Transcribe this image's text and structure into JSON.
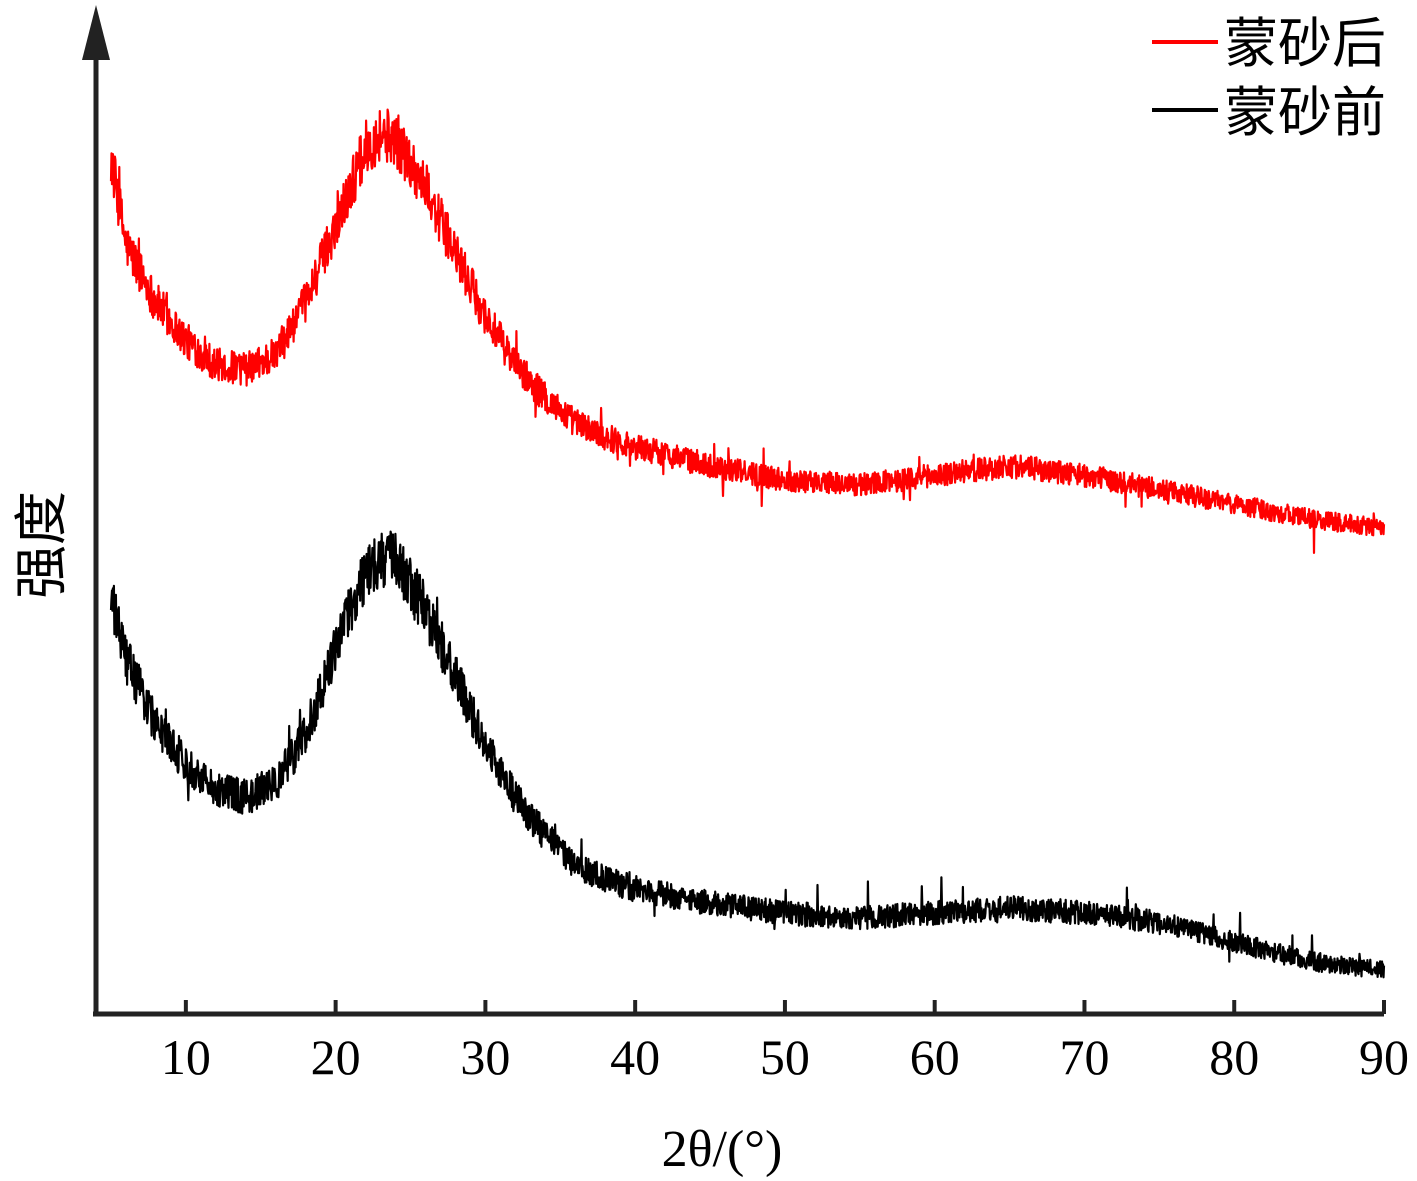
{
  "chart_data": {
    "type": "line",
    "title": "",
    "xlabel": "2θ/(°)",
    "ylabel": "强度",
    "xlim": [
      4,
      90
    ],
    "ylim": [
      0,
      100
    ],
    "y_ticks_shown": false,
    "x_ticks": [
      10,
      20,
      30,
      40,
      50,
      60,
      70,
      80,
      90
    ],
    "x_tick_labels": [
      "10",
      "20",
      "30",
      "40",
      "50",
      "60",
      "70",
      "80",
      "90"
    ],
    "grid": false,
    "legend_position": "top-right",
    "series": [
      {
        "name": "蒙砂后",
        "color": "#ff0000",
        "x": [
          5,
          6,
          8,
          10,
          12,
          14,
          16,
          18,
          20,
          22,
          23,
          24,
          26,
          28,
          30,
          32,
          34,
          36,
          38,
          40,
          45,
          50,
          55,
          60,
          65,
          70,
          75,
          80,
          85,
          90
        ],
        "y": [
          89,
          80,
          74,
          70,
          67.5,
          67,
          68.5,
          74,
          82,
          90,
          91.5,
          91,
          86,
          79,
          72.5,
          67.5,
          64,
          61.5,
          60,
          59,
          57,
          55.5,
          55,
          56,
          57,
          56,
          54.5,
          53,
          51.5,
          50.5
        ]
      },
      {
        "name": "蒙砂前",
        "color": "#000000",
        "x": [
          5,
          6,
          8,
          10,
          12,
          14,
          16,
          18,
          20,
          22,
          23,
          24,
          26,
          28,
          30,
          32,
          34,
          36,
          38,
          40,
          45,
          50,
          55,
          60,
          65,
          70,
          75,
          80,
          85,
          90
        ],
        "y": [
          43,
          37,
          30,
          26,
          23.5,
          22.5,
          24,
          29,
          38,
          46,
          47.5,
          47,
          42,
          35,
          28,
          22.5,
          18.5,
          15.5,
          14,
          13,
          11.5,
          10.5,
          10,
          10.5,
          11,
          10.5,
          9.5,
          7.5,
          5.5,
          4.5
        ]
      }
    ]
  }
}
